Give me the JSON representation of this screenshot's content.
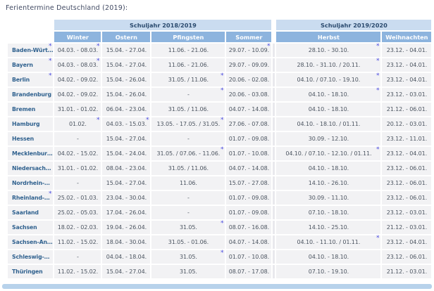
{
  "title": "Ferientermine Deutschland (2019):",
  "colors": {
    "title_color": "#414a63",
    "group_header_bg": "#cadcf0",
    "group_header_text": "#2a4a6e",
    "col_header_bg": "#8db4de",
    "row_bg": "#f2f2f4",
    "divider_bg": "#e9e9ed",
    "state_color": "#31628f",
    "date_color": "#4b5460",
    "star_color": "#4a4ae0",
    "scrollbar_color": "#b7d2eb"
  },
  "table": {
    "group_headers": [
      {
        "label": "Schuljahr 2018/2019",
        "span": 4
      },
      {
        "label": "Schuljahr 2019/2020",
        "span": 2
      }
    ],
    "columns": [
      "Winter",
      "Ostern",
      "Pfingsten",
      "Sommer",
      "Herbst",
      "Weihnachten"
    ],
    "footnote_marker": "*",
    "rows": [
      {
        "name": "Baden-Würt…",
        "star": true,
        "cells": [
          {
            "text": "04.03. - 08.03.",
            "star": true
          },
          {
            "text": "15.04. - 27.04."
          },
          {
            "text": "11.06. - 21.06."
          },
          {
            "text": "29.07. - 10.09.",
            "star": true
          },
          {
            "text": "28.10. - 30.10.",
            "star": true
          },
          {
            "text": "23.12. - 04.01."
          }
        ]
      },
      {
        "name": "Bayern",
        "star": true,
        "cells": [
          {
            "text": "04.03. - 08.03.",
            "star": true
          },
          {
            "text": "15.04. - 27.04."
          },
          {
            "text": "11.06. - 21.06."
          },
          {
            "text": "29.07. - 09.09."
          },
          {
            "text": "28.10. - 31.10. / 20.11.",
            "star": true
          },
          {
            "text": "23.12. - 04.01."
          }
        ]
      },
      {
        "name": "Berlin",
        "star": true,
        "cells": [
          {
            "text": "04.02. - 09.02."
          },
          {
            "text": "15.04. - 26.04."
          },
          {
            "text": "31.05. / 11.06.",
            "star": true
          },
          {
            "text": "20.06. - 02.08."
          },
          {
            "text": "04.10. / 07.10. - 19.10.",
            "star": true
          },
          {
            "text": "23.12. - 04.01."
          }
        ]
      },
      {
        "name": "Brandenburg",
        "cells": [
          {
            "text": "04.02. - 09.02."
          },
          {
            "text": "15.04. - 26.04."
          },
          {
            "text": "-",
            "star": true
          },
          {
            "text": "20.06. - 03.08."
          },
          {
            "text": "04.10. - 18.10.",
            "star": true
          },
          {
            "text": "23.12. - 03.01."
          }
        ]
      },
      {
        "name": "Bremen",
        "cells": [
          {
            "text": "31.01. - 01.02."
          },
          {
            "text": "06.04. - 23.04."
          },
          {
            "text": "31.05. / 11.06."
          },
          {
            "text": "04.07. - 14.08."
          },
          {
            "text": "04.10. - 18.10."
          },
          {
            "text": "21.12. - 06.01."
          }
        ]
      },
      {
        "name": "Hamburg",
        "cells": [
          {
            "text": "01.02.",
            "star": true
          },
          {
            "text": "04.03. - 15.03.",
            "star": true
          },
          {
            "text": "13.05. - 17.05. / 31.05.",
            "star": true
          },
          {
            "text": "27.06. - 07.08."
          },
          {
            "text": "04.10. - 18.10. / 01.11."
          },
          {
            "text": "20.12. - 03.01."
          }
        ]
      },
      {
        "name": "Hessen",
        "cells": [
          {
            "text": "-"
          },
          {
            "text": "15.04. - 27.04."
          },
          {
            "text": "-"
          },
          {
            "text": "01.07. - 09.08."
          },
          {
            "text": "30.09. - 12.10."
          },
          {
            "text": "23.12. - 11.01."
          }
        ]
      },
      {
        "name": "Mecklenbur…",
        "cells": [
          {
            "text": "04.02. - 15.02."
          },
          {
            "text": "15.04. - 24.04."
          },
          {
            "text": "31.05. / 07.06. - 11.06.",
            "star": true
          },
          {
            "text": "01.07. - 10.08."
          },
          {
            "text": "04.10. / 07.10. - 12.10. / 01.11.",
            "star": true
          },
          {
            "text": "23.12. - 04.01."
          }
        ]
      },
      {
        "name": "Niedersach…",
        "cells": [
          {
            "text": "31.01. - 01.02."
          },
          {
            "text": "08.04. - 23.04."
          },
          {
            "text": "31.05. / 11.06."
          },
          {
            "text": "04.07. - 14.08."
          },
          {
            "text": "04.10. - 18.10."
          },
          {
            "text": "23.12. - 06.01."
          }
        ]
      },
      {
        "name": "Nordrhein-…",
        "cells": [
          {
            "text": "-"
          },
          {
            "text": "15.04. - 27.04."
          },
          {
            "text": "11.06."
          },
          {
            "text": "15.07. - 27.08."
          },
          {
            "text": "14.10. - 26.10."
          },
          {
            "text": "23.12. - 06.01."
          }
        ]
      },
      {
        "name": "Rheinland-…",
        "star": true,
        "cells": [
          {
            "text": "25.02. - 01.03."
          },
          {
            "text": "23.04. - 30.04."
          },
          {
            "text": "-"
          },
          {
            "text": "01.07. - 09.08."
          },
          {
            "text": "30.09. - 11.10."
          },
          {
            "text": "23.12. - 06.01."
          }
        ]
      },
      {
        "name": "Saarland",
        "cells": [
          {
            "text": "25.02. - 05.03."
          },
          {
            "text": "17.04. - 26.04."
          },
          {
            "text": "-"
          },
          {
            "text": "01.07. - 09.08."
          },
          {
            "text": "07.10. - 18.10."
          },
          {
            "text": "23.12. - 03.01."
          }
        ]
      },
      {
        "name": "Sachsen",
        "cells": [
          {
            "text": "18.02. - 02.03."
          },
          {
            "text": "19.04. - 26.04."
          },
          {
            "text": "31.05.",
            "star": true
          },
          {
            "text": "08.07. - 16.08."
          },
          {
            "text": "14.10. - 25.10."
          },
          {
            "text": "21.12. - 03.01."
          }
        ]
      },
      {
        "name": "Sachsen-An…",
        "cells": [
          {
            "text": "11.02. - 15.02."
          },
          {
            "text": "18.04. - 30.04."
          },
          {
            "text": "31.05. - 01.06."
          },
          {
            "text": "04.07. - 14.08."
          },
          {
            "text": "04.10. - 11.10. / 01.11.",
            "star": true
          },
          {
            "text": "23.12. - 04.01."
          }
        ]
      },
      {
        "name": "Schleswig-…",
        "cells": [
          {
            "text": "-"
          },
          {
            "text": "04.04. - 18.04."
          },
          {
            "text": "31.05.",
            "star": true
          },
          {
            "text": "01.07. - 10.08."
          },
          {
            "text": "04.10. - 18.10."
          },
          {
            "text": "23.12. - 06.01."
          }
        ]
      },
      {
        "name": "Thüringen",
        "cells": [
          {
            "text": "11.02. - 15.02."
          },
          {
            "text": "15.04. - 27.04."
          },
          {
            "text": "31.05."
          },
          {
            "text": "08.07. - 17.08."
          },
          {
            "text": "07.10. - 19.10."
          },
          {
            "text": "21.12. - 03.01."
          }
        ]
      }
    ]
  }
}
